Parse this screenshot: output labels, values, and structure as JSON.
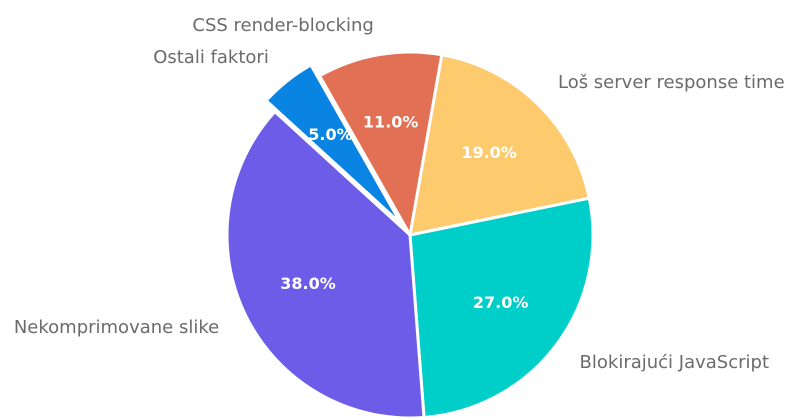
{
  "chart_data": {
    "type": "pie",
    "categories": [
      "Loš server response time",
      "Blokirajući JavaScript",
      "Nekomprimovane slike",
      "Ostali faktori",
      "CSS render-blocking"
    ],
    "values": [
      19.0,
      27.0,
      38.0,
      5.0,
      11.0
    ],
    "value_labels": [
      "19.0%",
      "27.0%",
      "38.0%",
      "5.0%",
      "11.0%"
    ],
    "colors": [
      "#fdcb6e",
      "#00cec9",
      "#6c5ce7",
      "#0984e3",
      "#e17055"
    ],
    "exploded": [
      false,
      false,
      false,
      true,
      false
    ],
    "start_angle_deg": 10,
    "direction": "clockwise"
  }
}
